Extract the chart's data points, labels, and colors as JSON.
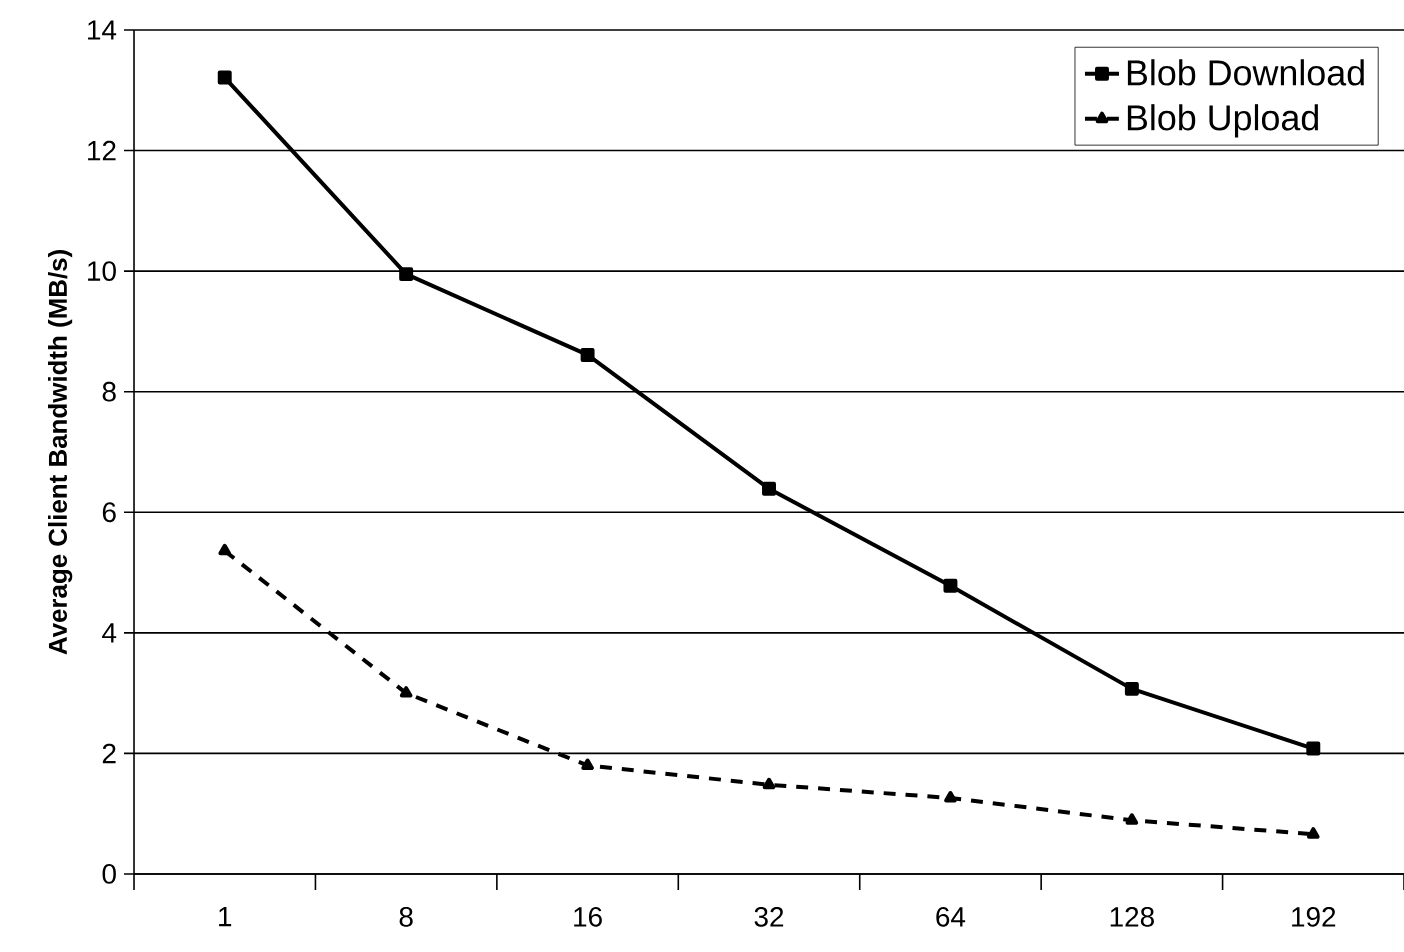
{
  "chart_data": {
    "type": "line",
    "ylabel": "Average Client Bandwidth (MB/s)",
    "categories": [
      "1",
      "8",
      "16",
      "32",
      "64",
      "128",
      "192"
    ],
    "series": [
      {
        "name": "Blob Download",
        "color": "#000000",
        "marker": "square",
        "line_style": "solid",
        "values": [
          13.21,
          9.95,
          8.61,
          6.39,
          4.78,
          3.07,
          2.08
        ]
      },
      {
        "name": "Blob Upload",
        "color": "#000000",
        "marker": "triangle",
        "line_style": "dashed",
        "values": [
          5.36,
          3.0,
          1.8,
          1.48,
          1.26,
          0.89,
          0.66
        ]
      }
    ],
    "ylim": [
      0,
      14
    ],
    "yticks": [
      0,
      2,
      4,
      6,
      8,
      10,
      12,
      14
    ],
    "grid": "y",
    "legend": "top right"
  }
}
